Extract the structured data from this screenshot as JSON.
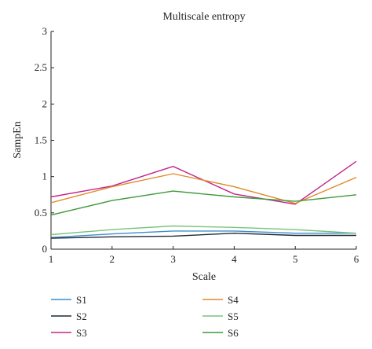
{
  "chart_data": {
    "type": "line",
    "title": "Multiscale entropy",
    "xlabel": "Scale",
    "ylabel": "SampEn",
    "x": [
      1,
      2,
      3,
      4,
      5,
      6
    ],
    "xlim": [
      1,
      6
    ],
    "ylim": [
      0,
      3
    ],
    "xticks": [
      "1",
      "2",
      "3",
      "4",
      "5",
      "6"
    ],
    "yticks": [
      "0",
      "0.5",
      "1",
      "1.5",
      "2",
      "2.5",
      "3"
    ],
    "grid": false,
    "legend_position": "bottom",
    "series": [
      {
        "name": "S1",
        "color": "#3a8fd0",
        "values": [
          0.16,
          0.21,
          0.25,
          0.25,
          0.22,
          0.22
        ]
      },
      {
        "name": "S2",
        "color": "#1f2a36",
        "values": [
          0.15,
          0.17,
          0.18,
          0.22,
          0.19,
          0.19
        ]
      },
      {
        "name": "S3",
        "color": "#c2268a",
        "values": [
          0.72,
          0.87,
          1.14,
          0.76,
          0.62,
          1.21
        ]
      },
      {
        "name": "S4",
        "color": "#e08a2c",
        "values": [
          0.64,
          0.86,
          1.04,
          0.86,
          0.63,
          0.99
        ]
      },
      {
        "name": "S5",
        "color": "#7cc27b",
        "values": [
          0.2,
          0.27,
          0.32,
          0.3,
          0.27,
          0.22
        ]
      },
      {
        "name": "S6",
        "color": "#3f9a3c",
        "values": [
          0.47,
          0.67,
          0.8,
          0.72,
          0.66,
          0.75
        ]
      }
    ]
  }
}
